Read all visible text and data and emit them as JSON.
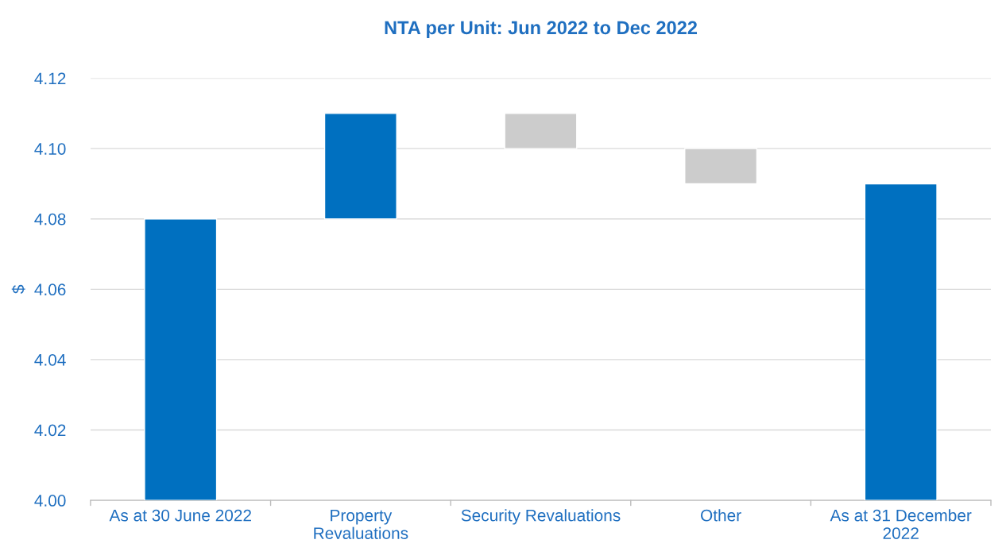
{
  "chart_data": {
    "type": "bar",
    "title": "NTA per Unit: Jun 2022 to Dec 2022",
    "ylabel": "$",
    "categories": [
      "As at 30 June 2022",
      "Property Revaluations",
      "Security Revaluations",
      "Other",
      "As at 31 December 2022"
    ],
    "values": [
      0.08,
      0.03,
      -0.01,
      -0.01,
      0.09
    ],
    "base": [
      4.0,
      4.08,
      4.11,
      4.1,
      4.0
    ],
    "colors": [
      "#0070c0",
      "#0070c0",
      "#cccccc",
      "#cccccc",
      "#0070c0"
    ],
    "ylim": [
      4.0,
      4.12
    ],
    "yticks": [
      {
        "value": 4.0,
        "label": "4.00"
      },
      {
        "value": 4.02,
        "label": "4.02"
      },
      {
        "value": 4.04,
        "label": "4.04"
      },
      {
        "value": 4.06,
        "label": "4.06"
      },
      {
        "value": 4.08,
        "label": "4.08"
      },
      {
        "value": 4.1,
        "label": "4.10"
      },
      {
        "value": 4.12,
        "label": "4.12"
      }
    ],
    "grid": "y",
    "legend": false
  }
}
